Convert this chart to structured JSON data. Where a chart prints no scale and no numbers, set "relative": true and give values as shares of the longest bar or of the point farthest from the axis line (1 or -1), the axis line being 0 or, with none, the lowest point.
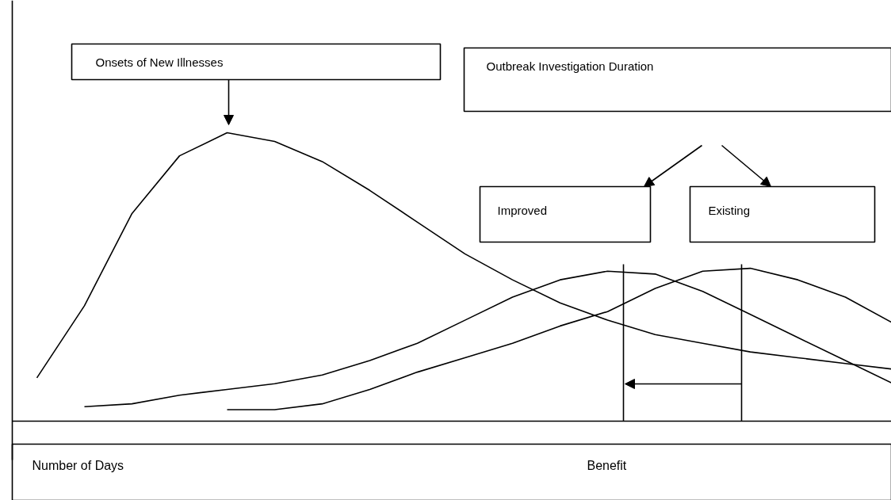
{
  "chart_data": {
    "type": "line",
    "relative": true,
    "categories": [
      null,
      null,
      null,
      null,
      null,
      null,
      null,
      null,
      null,
      null,
      null,
      null,
      null,
      null,
      null,
      null,
      null,
      null,
      null
    ],
    "series": [
      {
        "color": "#000000",
        "values": [
          0.15,
          0.4,
          0.72,
          0.92,
          1.0,
          0.97,
          0.9,
          0.8,
          0.69,
          0.58,
          0.49,
          0.41,
          0.35,
          0.3,
          0.27,
          0.24,
          0.22,
          0.2,
          0.18
        ]
      },
      {
        "color": "#000000",
        "values": [
          null,
          0.05,
          0.06,
          0.09,
          0.11,
          0.13,
          0.16,
          0.21,
          0.27,
          0.35,
          0.43,
          0.49,
          0.52,
          0.51,
          0.45,
          0.37,
          0.29,
          0.21,
          0.13
        ]
      },
      {
        "color": "#000000",
        "values": [
          null,
          null,
          null,
          null,
          0.04,
          0.04,
          0.06,
          0.11,
          0.17,
          0.22,
          0.27,
          0.33,
          0.38,
          0.46,
          0.52,
          0.53,
          0.49,
          0.43,
          0.34
        ]
      }
    ],
    "annotations": [
      "Onsets of New Illnesses",
      "Outbreak Investigation Duration",
      "Improved",
      "Existing",
      "Number of Days",
      "Benefit"
    ],
    "grid": false,
    "marker": "none",
    "line_style": "solid"
  }
}
